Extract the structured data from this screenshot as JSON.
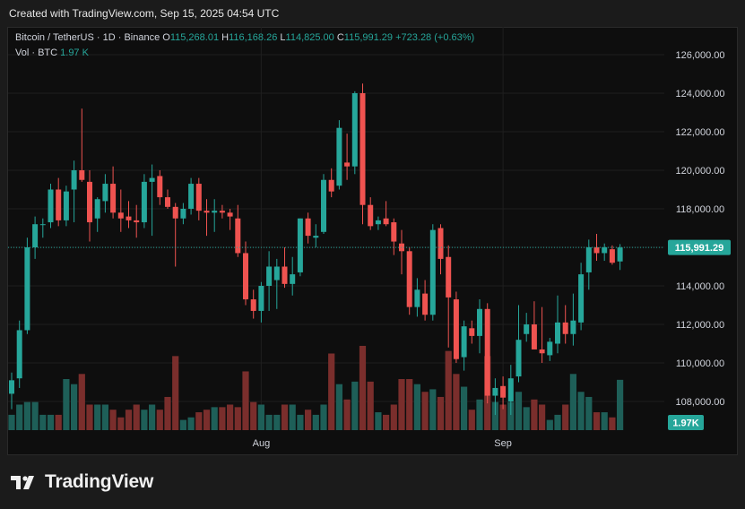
{
  "header": {
    "text": "Created with TradingView.com, Sep 15, 2025 04:54 UTC"
  },
  "legend": {
    "symbol": "Bitcoin / TetherUS · 1D · Binance",
    "open_label": "O",
    "open": "115,268.01",
    "high_label": "H",
    "high": "116,168.26",
    "low_label": "L",
    "low": "114,825.00",
    "close_label": "C",
    "close": "115,991.29",
    "change": "+723.28 (+0.63%)",
    "vol_label": "Vol · BTC",
    "vol_value": "1.97 K"
  },
  "brand": {
    "name": "TradingView"
  },
  "colors": {
    "up": "#26a69a",
    "down": "#ef5350",
    "up_vol": "#1e5f58",
    "down_vol": "#7a2e2c",
    "bg": "#0e0e0e",
    "grid": "#1f1f1f",
    "axis_text": "#d1d4dc"
  },
  "chart_data": {
    "type": "candlestick",
    "title": "Bitcoin / TetherUS · 1D · Binance",
    "ylim": [
      107000,
      126400
    ],
    "y_ticks": [
      108000,
      110000,
      112000,
      114000,
      116000,
      118000,
      120000,
      122000,
      124000,
      126000
    ],
    "y_tick_labels": [
      "108,000.00",
      "110,000.00",
      "112,000.00",
      "114,000.00",
      "116,000.00",
      "118,000.00",
      "120,000.00",
      "122,000.00",
      "124,000.00",
      "126,000.00"
    ],
    "x_labels": [
      {
        "label": "Aug",
        "index": 32
      },
      {
        "label": "Sep",
        "index": 63
      }
    ],
    "last_price": 115991.29,
    "last_price_label": "115,991.29",
    "last_volume_label": "1.97K",
    "candles": [
      {
        "o": 108400,
        "h": 109500,
        "l": 107600,
        "c": 109100,
        "v": 0.6
      },
      {
        "o": 109200,
        "h": 112200,
        "l": 108700,
        "c": 111700,
        "v": 1.0
      },
      {
        "o": 111700,
        "h": 116500,
        "l": 111500,
        "c": 116000,
        "v": 1.1
      },
      {
        "o": 116000,
        "h": 117600,
        "l": 115400,
        "c": 117200,
        "v": 1.1
      },
      {
        "o": 117200,
        "h": 117500,
        "l": 116500,
        "c": 117200,
        "v": 0.6
      },
      {
        "o": 117300,
        "h": 119300,
        "l": 117000,
        "c": 119000,
        "v": 0.6
      },
      {
        "o": 119000,
        "h": 119600,
        "l": 117100,
        "c": 117400,
        "v": 0.6
      },
      {
        "o": 117400,
        "h": 119200,
        "l": 117100,
        "c": 118900,
        "v": 2.0
      },
      {
        "o": 119000,
        "h": 120500,
        "l": 117300,
        "c": 120000,
        "v": 1.8
      },
      {
        "o": 120000,
        "h": 123200,
        "l": 119400,
        "c": 119500,
        "v": 2.2
      },
      {
        "o": 119400,
        "h": 120000,
        "l": 116300,
        "c": 117300,
        "v": 1.0
      },
      {
        "o": 117500,
        "h": 118600,
        "l": 116800,
        "c": 118500,
        "v": 1.0
      },
      {
        "o": 118400,
        "h": 119800,
        "l": 117800,
        "c": 119300,
        "v": 1.0
      },
      {
        "o": 119300,
        "h": 120200,
        "l": 117500,
        "c": 117800,
        "v": 0.8
      },
      {
        "o": 117800,
        "h": 119000,
        "l": 116800,
        "c": 117500,
        "v": 0.5
      },
      {
        "o": 117600,
        "h": 118400,
        "l": 117000,
        "c": 117400,
        "v": 0.8
      },
      {
        "o": 117400,
        "h": 118200,
        "l": 116500,
        "c": 117300,
        "v": 1.0
      },
      {
        "o": 117300,
        "h": 119800,
        "l": 117000,
        "c": 119400,
        "v": 0.8
      },
      {
        "o": 119400,
        "h": 120300,
        "l": 116600,
        "c": 119600,
        "v": 1.0
      },
      {
        "o": 119700,
        "h": 120000,
        "l": 118200,
        "c": 118600,
        "v": 0.8
      },
      {
        "o": 118600,
        "h": 119000,
        "l": 118000,
        "c": 118100,
        "v": 1.3
      },
      {
        "o": 118100,
        "h": 118300,
        "l": 115000,
        "c": 117500,
        "v": 2.9
      },
      {
        "o": 117500,
        "h": 118300,
        "l": 117200,
        "c": 118000,
        "v": 0.4
      },
      {
        "o": 118000,
        "h": 119600,
        "l": 117700,
        "c": 119300,
        "v": 0.5
      },
      {
        "o": 119300,
        "h": 119600,
        "l": 117400,
        "c": 117900,
        "v": 0.7
      },
      {
        "o": 117900,
        "h": 118500,
        "l": 116600,
        "c": 117800,
        "v": 0.8
      },
      {
        "o": 117800,
        "h": 118500,
        "l": 116800,
        "c": 117900,
        "v": 0.9
      },
      {
        "o": 117900,
        "h": 118200,
        "l": 117500,
        "c": 117800,
        "v": 0.9
      },
      {
        "o": 117800,
        "h": 118000,
        "l": 116900,
        "c": 117600,
        "v": 1.0
      },
      {
        "o": 117500,
        "h": 118200,
        "l": 115500,
        "c": 115700,
        "v": 0.9
      },
      {
        "o": 115700,
        "h": 116300,
        "l": 113000,
        "c": 113300,
        "v": 2.3
      },
      {
        "o": 113300,
        "h": 113800,
        "l": 112300,
        "c": 112700,
        "v": 1.1
      },
      {
        "o": 112700,
        "h": 114200,
        "l": 112100,
        "c": 114000,
        "v": 1.0
      },
      {
        "o": 114000,
        "h": 115800,
        "l": 112700,
        "c": 115000,
        "v": 0.6
      },
      {
        "o": 114300,
        "h": 115400,
        "l": 112800,
        "c": 115000,
        "v": 0.6
      },
      {
        "o": 115000,
        "h": 116000,
        "l": 113900,
        "c": 114100,
        "v": 1.0
      },
      {
        "o": 114100,
        "h": 115500,
        "l": 113500,
        "c": 114600,
        "v": 1.0
      },
      {
        "o": 114700,
        "h": 117500,
        "l": 114500,
        "c": 117500,
        "v": 0.6
      },
      {
        "o": 117500,
        "h": 117800,
        "l": 116200,
        "c": 116600,
        "v": 0.8
      },
      {
        "o": 116500,
        "h": 117200,
        "l": 116000,
        "c": 116600,
        "v": 0.6
      },
      {
        "o": 116800,
        "h": 119800,
        "l": 116700,
        "c": 119500,
        "v": 1.0
      },
      {
        "o": 119500,
        "h": 120100,
        "l": 118600,
        "c": 118900,
        "v": 3.0
      },
      {
        "o": 119200,
        "h": 122600,
        "l": 119000,
        "c": 122200,
        "v": 1.8
      },
      {
        "o": 120400,
        "h": 121900,
        "l": 119500,
        "c": 120200,
        "v": 1.2
      },
      {
        "o": 120200,
        "h": 124100,
        "l": 119800,
        "c": 124000,
        "v": 1.9
      },
      {
        "o": 124000,
        "h": 124500,
        "l": 117200,
        "c": 118200,
        "v": 3.3
      },
      {
        "o": 118200,
        "h": 118600,
        "l": 116900,
        "c": 117100,
        "v": 1.9
      },
      {
        "o": 117200,
        "h": 117600,
        "l": 116900,
        "c": 117400,
        "v": 0.7
      },
      {
        "o": 117500,
        "h": 118400,
        "l": 117100,
        "c": 117200,
        "v": 0.6
      },
      {
        "o": 117300,
        "h": 117500,
        "l": 115600,
        "c": 116300,
        "v": 1.0
      },
      {
        "o": 116200,
        "h": 116900,
        "l": 114600,
        "c": 115800,
        "v": 2.0
      },
      {
        "o": 115800,
        "h": 116000,
        "l": 112500,
        "c": 112900,
        "v": 2.0
      },
      {
        "o": 112900,
        "h": 114400,
        "l": 112400,
        "c": 113800,
        "v": 1.8
      },
      {
        "o": 113600,
        "h": 114300,
        "l": 112200,
        "c": 112500,
        "v": 1.5
      },
      {
        "o": 112500,
        "h": 117200,
        "l": 112200,
        "c": 116900,
        "v": 1.6
      },
      {
        "o": 117000,
        "h": 117200,
        "l": 114600,
        "c": 115400,
        "v": 1.3
      },
      {
        "o": 115500,
        "h": 116100,
        "l": 110800,
        "c": 113400,
        "v": 3.1
      },
      {
        "o": 113300,
        "h": 113700,
        "l": 110000,
        "c": 110200,
        "v": 2.2
      },
      {
        "o": 110300,
        "h": 112200,
        "l": 109600,
        "c": 111900,
        "v": 1.7
      },
      {
        "o": 111800,
        "h": 112200,
        "l": 111000,
        "c": 111400,
        "v": 0.8
      },
      {
        "o": 111400,
        "h": 113300,
        "l": 110500,
        "c": 112800,
        "v": 1.2
      },
      {
        "o": 112800,
        "h": 113100,
        "l": 107900,
        "c": 108300,
        "v": 2.9
      },
      {
        "o": 108300,
        "h": 109200,
        "l": 107300,
        "c": 108700,
        "v": 1.1
      },
      {
        "o": 108800,
        "h": 109300,
        "l": 107600,
        "c": 108200,
        "v": 1.0
      },
      {
        "o": 108000,
        "h": 109900,
        "l": 107300,
        "c": 109200,
        "v": 1.1
      },
      {
        "o": 109300,
        "h": 113000,
        "l": 109000,
        "c": 111200,
        "v": 1.5
      },
      {
        "o": 111500,
        "h": 112600,
        "l": 111100,
        "c": 112000,
        "v": 0.9
      },
      {
        "o": 112000,
        "h": 113200,
        "l": 110800,
        "c": 110700,
        "v": 1.2
      },
      {
        "o": 110700,
        "h": 112900,
        "l": 110000,
        "c": 110500,
        "v": 1.0
      },
      {
        "o": 110400,
        "h": 111300,
        "l": 110100,
        "c": 111100,
        "v": 0.4
      },
      {
        "o": 111000,
        "h": 113500,
        "l": 110500,
        "c": 112100,
        "v": 0.6
      },
      {
        "o": 112100,
        "h": 113000,
        "l": 111000,
        "c": 111500,
        "v": 1.0
      },
      {
        "o": 111500,
        "h": 113600,
        "l": 110900,
        "c": 112200,
        "v": 2.2
      },
      {
        "o": 112100,
        "h": 115200,
        "l": 111700,
        "c": 114600,
        "v": 1.5
      },
      {
        "o": 114700,
        "h": 116400,
        "l": 113800,
        "c": 116000,
        "v": 1.3
      },
      {
        "o": 116000,
        "h": 116700,
        "l": 115300,
        "c": 115700,
        "v": 0.7
      },
      {
        "o": 115700,
        "h": 116200,
        "l": 115300,
        "c": 116000,
        "v": 0.7
      },
      {
        "o": 115900,
        "h": 116100,
        "l": 115100,
        "c": 115200,
        "v": 0.5
      },
      {
        "o": 115268.01,
        "h": 116168.26,
        "l": 114825.0,
        "c": 115991.29,
        "v": 1.97
      }
    ]
  }
}
